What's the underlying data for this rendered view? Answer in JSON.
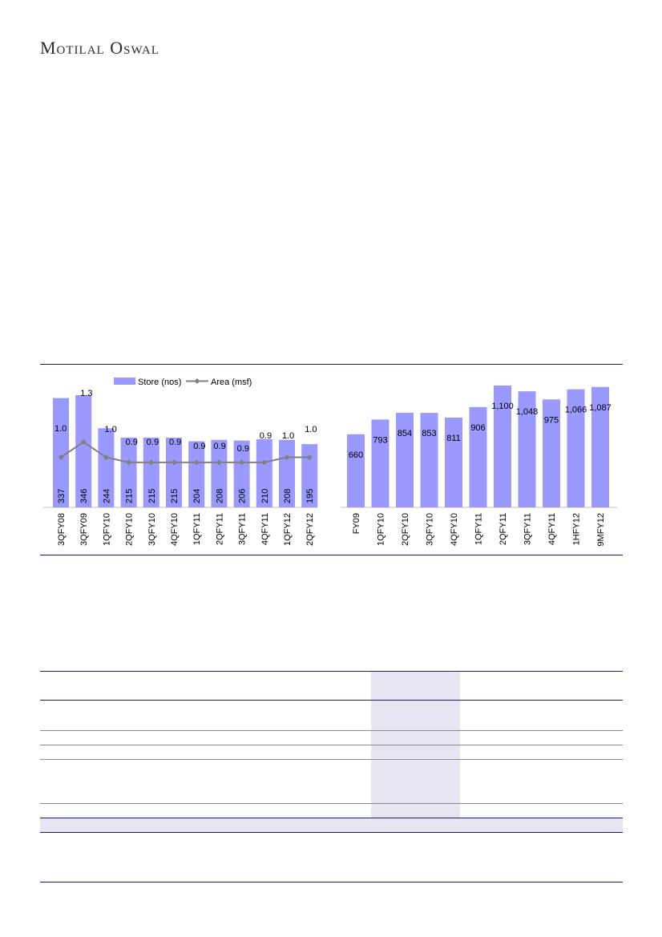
{
  "header": {
    "brand": "Motilal Oswal"
  },
  "chart_data": [
    {
      "type": "bar",
      "categories": [
        "3QFY08",
        "3QFY09",
        "1QFY10",
        "2QFY10",
        "3QFY10",
        "4QFY10",
        "1QFY11",
        "2QFY11",
        "3QFY11",
        "4QFY11",
        "1QFY12",
        "2QFY12"
      ],
      "series": [
        {
          "name": "Store (nos)",
          "type": "bar",
          "values": [
            337,
            346,
            244,
            215,
            215,
            215,
            204,
            208,
            206,
            210,
            208,
            195
          ],
          "color": "#9999ff"
        },
        {
          "name": "Area (msf)",
          "type": "line",
          "values": [
            1.0,
            1.3,
            1.0,
            0.9,
            0.9,
            0.9,
            0.9,
            0.9,
            0.9,
            0.9,
            1.0,
            1.0
          ],
          "color": "#808080"
        }
      ],
      "legend": "top-center"
    },
    {
      "type": "bar",
      "categories": [
        "FY09",
        "1QFY10",
        "2QFY10",
        "3QFY10",
        "4QFY10",
        "1QFY11",
        "2QFY11",
        "3QFY11",
        "4QFY11",
        "1HFY12",
        "9MFY12"
      ],
      "values": [
        660,
        793,
        854,
        853,
        811,
        906,
        1100,
        1048,
        975,
        1066,
        1087
      ],
      "value_labels": [
        "660",
        "793",
        "854",
        "853",
        "811",
        "906",
        "1,100",
        "1,048",
        "975",
        "1,066",
        "1,087"
      ],
      "color": "#9999ff"
    }
  ]
}
